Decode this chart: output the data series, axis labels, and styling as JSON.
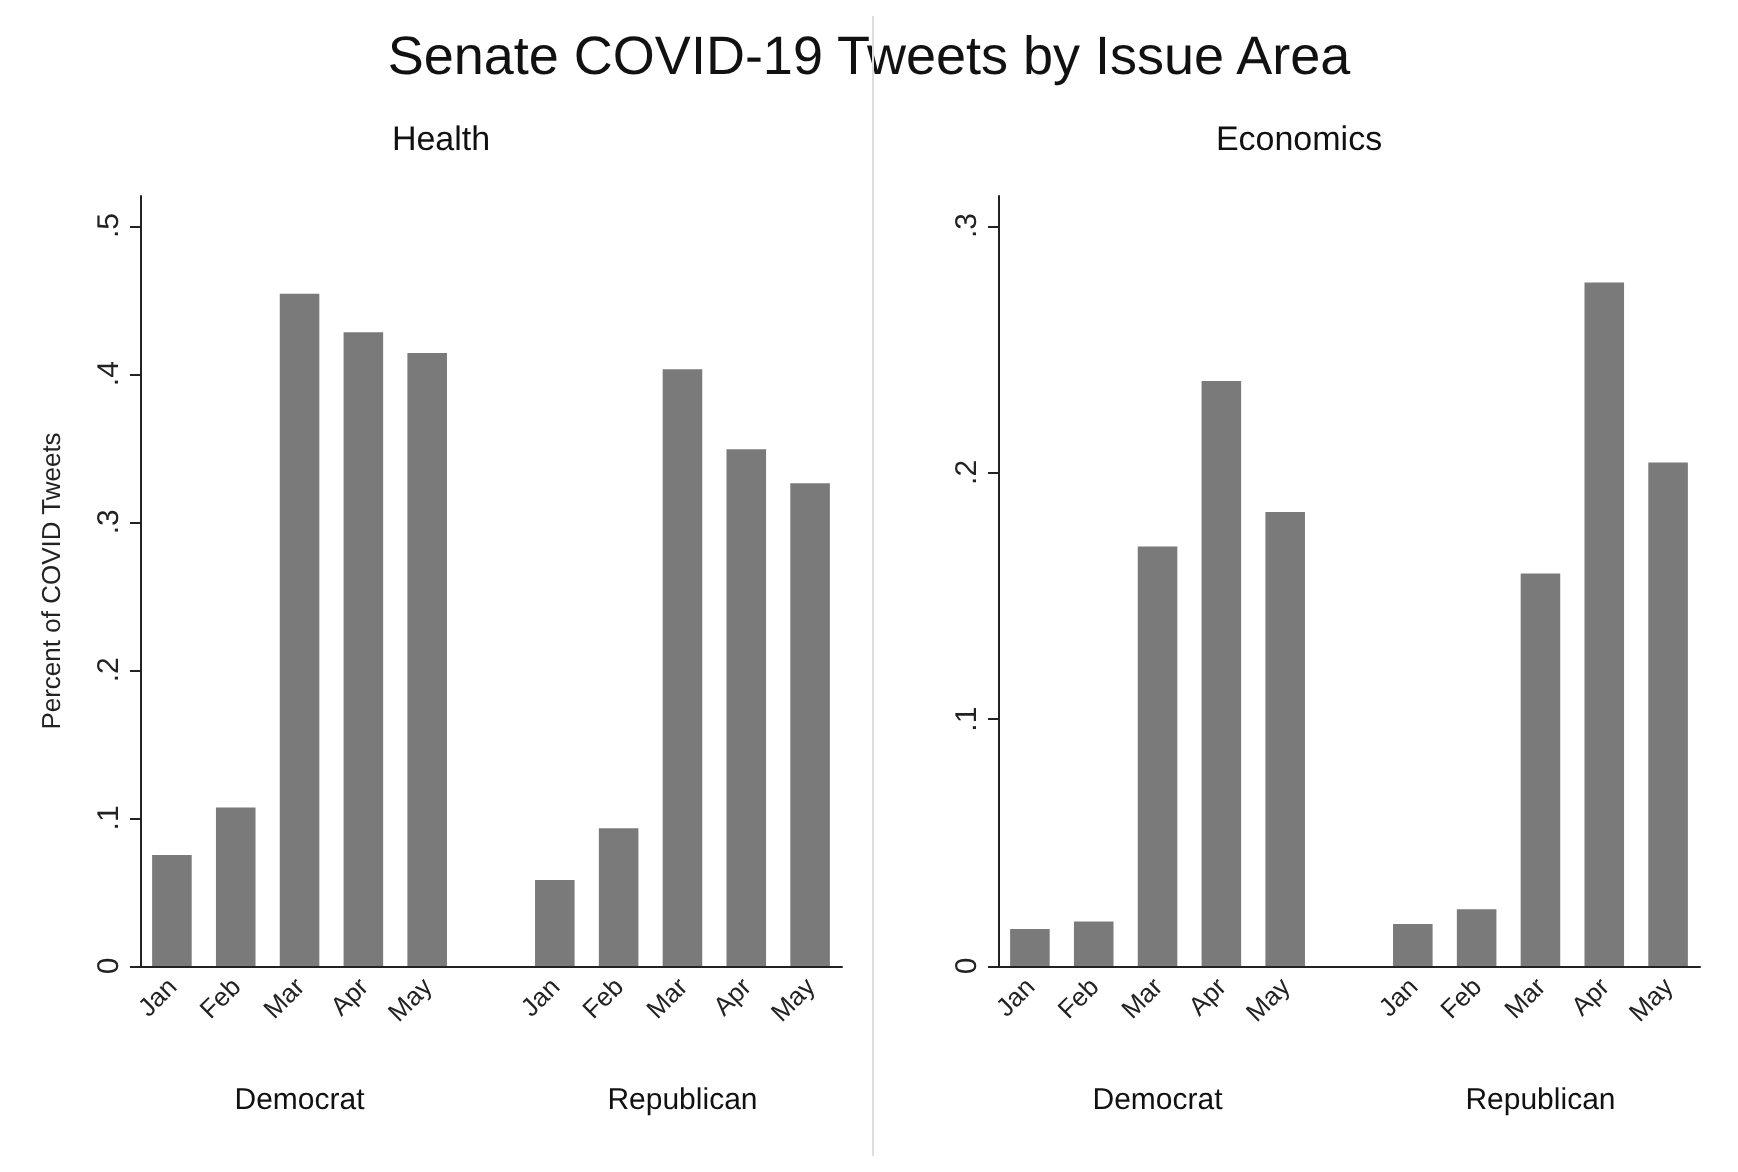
{
  "chart_data": [
    {
      "type": "bar",
      "title": "Senate COVID-19 Tweets by Issue Area",
      "subtitle": "Health",
      "ylabel": "Percent of COVID Tweets",
      "categories": [
        "Jan",
        "Feb",
        "Mar",
        "Apr",
        "May",
        null,
        "Jan",
        "Feb",
        "Mar",
        "Apr",
        "May"
      ],
      "series": [
        {
          "color": "#7a7a7a",
          "values": [
            0.075,
            0.107,
            0.454,
            0.428,
            0.414,
            null,
            0.058,
            0.093,
            0.403,
            0.349,
            0.326
          ]
        }
      ],
      "annotations": [
        "Democrat",
        "Republican"
      ],
      "ylim": [
        0,
        0.52
      ],
      "yticks": [
        0,
        {
          "value": 0.1,
          "label": ".1"
        },
        {
          "value": 0.2,
          "label": ".2"
        },
        {
          "value": 0.3,
          "label": ".3"
        },
        {
          "value": 0.4,
          "label": ".4"
        },
        {
          "value": 0.5,
          "label": ".5"
        }
      ],
      "grid": false
    },
    {
      "type": "bar",
      "subtitle": "Economics",
      "categories": [
        "Jan",
        "Feb",
        "Mar",
        "Apr",
        "May",
        null,
        "Jan",
        "Feb",
        "Mar",
        "Apr",
        "May"
      ],
      "series": [
        {
          "color": "#7a7a7a",
          "values": [
            0.015,
            0.018,
            0.17,
            0.237,
            0.184,
            null,
            0.017,
            0.023,
            0.159,
            0.277,
            0.204
          ]
        }
      ],
      "annotations": [
        "Democrat",
        "Republican"
      ],
      "ylim": [
        0,
        0.312
      ],
      "yticks": [
        0,
        {
          "value": 0.1,
          "label": ".1"
        },
        {
          "value": 0.2,
          "label": ".2"
        },
        {
          "value": 0.3,
          "label": ".3"
        }
      ],
      "grid": false
    }
  ]
}
